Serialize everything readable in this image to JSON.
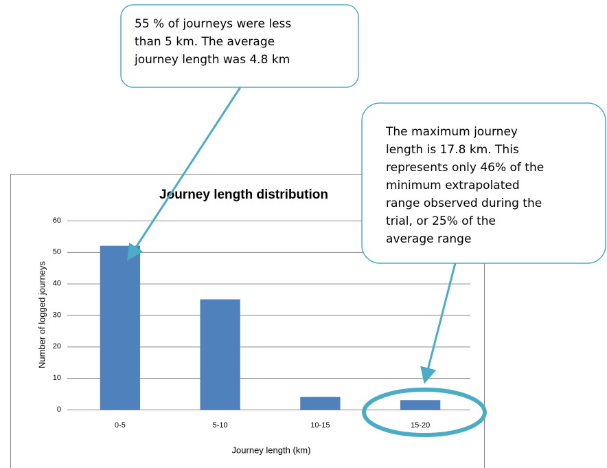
{
  "chart_data": {
    "type": "bar",
    "title": "Journey length distribution",
    "x_label": "Journey length (km)",
    "y_label": "Number of logged journeys",
    "categories": [
      "0-5",
      "5-10",
      "10-15",
      "15-20"
    ],
    "values": [
      52,
      35,
      4,
      3
    ],
    "color": "#4f81bd",
    "ylim": [
      0,
      60
    ],
    "yticks": [
      0,
      10,
      20,
      30,
      40,
      50,
      60
    ],
    "grid": true,
    "annotations": [
      {
        "lines": [
          "55 % of journeys were less",
          "than 5 km.  The average",
          "journey length was 4.8 km"
        ]
      },
      {
        "lines": [
          "The maximum journey",
          "length is 17.8 km.  This",
          "represents only 46% of the",
          "minimum extrapolated",
          "range observed during the",
          "trial, or 25% of the",
          "average range"
        ]
      }
    ]
  }
}
